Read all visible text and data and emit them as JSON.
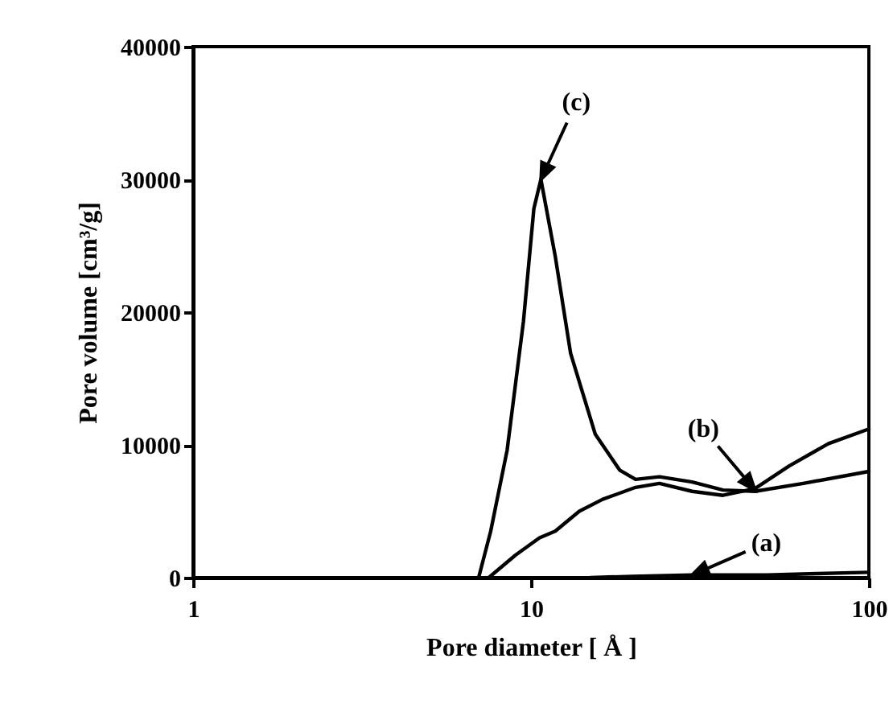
{
  "chart_data": {
    "type": "line",
    "xlabel": "Pore diameter [ Å ]",
    "ylabel": "Pore volume [cm³/g]",
    "log": "x",
    "xlim": [
      1,
      100
    ],
    "ylim": [
      0,
      40000
    ],
    "xticks": [
      1,
      10,
      100
    ],
    "yticks": [
      0,
      10000,
      20000,
      30000,
      40000
    ],
    "grid": false,
    "legend": false,
    "marker": "none",
    "line_style": "solid",
    "series": [
      {
        "color": "#000000",
        "x": [
          15,
          20,
          30,
          50,
          70,
          100
        ],
        "values": [
          0,
          100,
          200,
          200,
          300,
          400
        ]
      },
      {
        "color": "#000000",
        "x": [
          7.5,
          9.0,
          10.6,
          11.8,
          13.9,
          16.3,
          20.4,
          24,
          30,
          37,
          46,
          58,
          76,
          100
        ],
        "values": [
          0,
          1700,
          3000,
          3500,
          5000,
          5900,
          6800,
          7100,
          6500,
          6200,
          6700,
          8400,
          10100,
          11200
        ]
      },
      {
        "color": "#000000",
        "x": [
          7.0,
          7.6,
          8.5,
          9.5,
          10.2,
          10.7,
          11.8,
          13.1,
          15.5,
          18.3,
          20.4,
          24,
          30,
          37,
          46,
          64,
          100
        ],
        "values": [
          0,
          3500,
          9600,
          19300,
          27800,
          30000,
          24200,
          16900,
          10800,
          8100,
          7400,
          7600,
          7200,
          6600,
          6500,
          7100,
          8000
        ]
      }
    ],
    "annotations": [
      {
        "text": "(a)",
        "x": 30,
        "y": 200
      },
      {
        "text": "(b)",
        "x": 46,
        "y": 6600
      },
      {
        "text": "(c)",
        "x": 10.7,
        "y": 30000
      }
    ]
  }
}
